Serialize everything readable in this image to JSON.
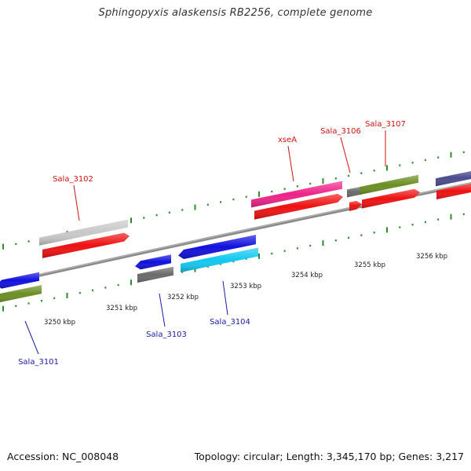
{
  "title": "Sphingopyxis alaskensis RB2256, complete genome",
  "footer": {
    "accession": "Accession: NC_008048",
    "info": "Topology: circular; Length: 3,345,170 bp; Genes: 3,217"
  },
  "ruler": {
    "unit": "kbp",
    "ticks": [
      "3250 kbp",
      "3251 kbp",
      "3252 kbp",
      "3253 kbp",
      "3254 kbp",
      "3255 kbp",
      "3256 kbp"
    ]
  },
  "gene_labels": [
    {
      "id": "Sala_3101",
      "text": "Sala_3101",
      "color": "#1a1aa6"
    },
    {
      "id": "Sala_3102",
      "text": "Sala_3102",
      "color": "#cc1111"
    },
    {
      "id": "Sala_3103",
      "text": "Sala_3103",
      "color": "#1a1aa6"
    },
    {
      "id": "Sala_3104",
      "text": "Sala_3104",
      "color": "#1a1aa6"
    },
    {
      "id": "xseA",
      "text": "xseA",
      "color": "#cc1111"
    },
    {
      "id": "Sala_3106",
      "text": "Sala_3106",
      "color": "#cc1111"
    },
    {
      "id": "Sala_3107",
      "text": "Sala_3107",
      "color": "#cc1111"
    }
  ],
  "colors": {
    "backbone": "#8a8a8a",
    "tick_green": "#2d8a2d",
    "tick_text": "#222222",
    "red": "#ee1111",
    "blue": "#1010dd",
    "olive": "#6b8e23",
    "grey": "#c8c8c8",
    "dark_grey": "#6a6a6a",
    "cyan": "#11c8f0",
    "magenta": "#ee2288",
    "slate": "#4b4b8f"
  }
}
